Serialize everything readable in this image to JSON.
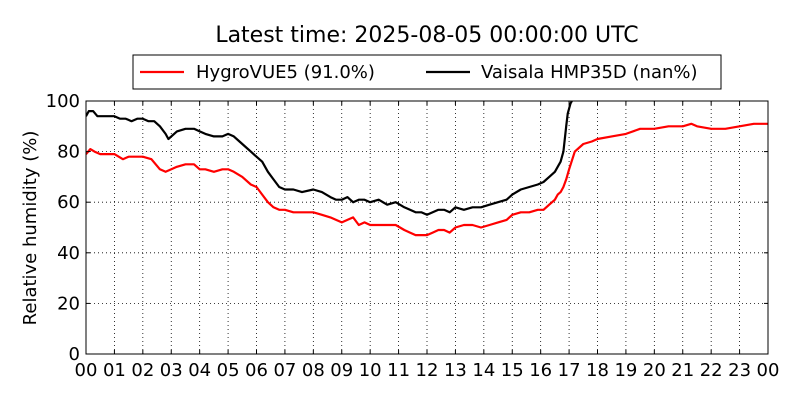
{
  "chart_data": {
    "type": "line",
    "title": "Latest time: 2025-08-05 00:00:00 UTC",
    "xlabel": "",
    "ylabel": "Relative humidity (%)",
    "xlim": [
      0,
      24
    ],
    "ylim": [
      0,
      100
    ],
    "x_tick_labels": [
      "00",
      "01",
      "02",
      "03",
      "04",
      "05",
      "06",
      "07",
      "08",
      "09",
      "10",
      "11",
      "12",
      "13",
      "14",
      "15",
      "16",
      "17",
      "18",
      "19",
      "20",
      "21",
      "22",
      "23",
      "00"
    ],
    "y_tick_labels": [
      "0",
      "20",
      "40",
      "60",
      "80",
      "100"
    ],
    "y_tick_values": [
      0,
      20,
      40,
      60,
      80,
      100
    ],
    "grid": true,
    "legend_position": "top-center",
    "series": [
      {
        "name": "HygroVUE5 (91.0%)",
        "color": "#ff0000",
        "x": [
          0.0,
          0.15,
          0.3,
          0.5,
          0.8,
          1.0,
          1.3,
          1.5,
          1.8,
          2.0,
          2.3,
          2.6,
          2.8,
          3.0,
          3.2,
          3.5,
          3.8,
          4.0,
          4.2,
          4.5,
          4.8,
          5.0,
          5.2,
          5.5,
          5.8,
          6.0,
          6.2,
          6.4,
          6.6,
          6.8,
          7.0,
          7.3,
          7.6,
          8.0,
          8.3,
          8.6,
          8.8,
          9.0,
          9.2,
          9.4,
          9.6,
          9.8,
          10.0,
          10.3,
          10.6,
          10.9,
          11.2,
          11.4,
          11.6,
          11.8,
          12.0,
          12.2,
          12.4,
          12.6,
          12.8,
          13.0,
          13.3,
          13.6,
          13.9,
          14.2,
          14.5,
          14.8,
          15.0,
          15.3,
          15.6,
          15.9,
          16.1,
          16.3,
          16.5,
          16.6,
          16.7,
          16.8,
          16.9,
          17.0,
          17.2,
          17.5,
          17.8,
          18.0,
          18.5,
          19.0,
          19.5,
          20.0,
          20.5,
          21.0,
          21.3,
          21.5,
          22.0,
          22.5,
          23.0,
          23.5,
          24.0
        ],
        "y": [
          79,
          81,
          80,
          79,
          79,
          79,
          77,
          78,
          78,
          78,
          77,
          73,
          72,
          73,
          74,
          75,
          75,
          73,
          73,
          72,
          73,
          73,
          72,
          70,
          67,
          66,
          63,
          60,
          58,
          57,
          57,
          56,
          56,
          56,
          55,
          54,
          53,
          52,
          53,
          54,
          51,
          52,
          51,
          51,
          51,
          51,
          49,
          48,
          47,
          47,
          47,
          48,
          49,
          49,
          48,
          50,
          51,
          51,
          50,
          51,
          52,
          53,
          55,
          56,
          56,
          57,
          57,
          59,
          61,
          63,
          64,
          66,
          69,
          73,
          80,
          83,
          84,
          85,
          86,
          87,
          89,
          89,
          90,
          90,
          91,
          90,
          89,
          89,
          90,
          91,
          91
        ]
      },
      {
        "name": "Vaisala HMP35D (nan%)",
        "color": "#000000",
        "x": [
          0.0,
          0.1,
          0.25,
          0.4,
          0.6,
          0.8,
          1.0,
          1.2,
          1.4,
          1.6,
          1.8,
          2.0,
          2.2,
          2.4,
          2.6,
          2.8,
          2.9,
          3.0,
          3.2,
          3.5,
          3.8,
          4.0,
          4.2,
          4.5,
          4.8,
          5.0,
          5.2,
          5.4,
          5.6,
          5.8,
          6.0,
          6.2,
          6.4,
          6.6,
          6.8,
          7.0,
          7.3,
          7.6,
          8.0,
          8.3,
          8.6,
          8.8,
          9.0,
          9.2,
          9.4,
          9.6,
          9.8,
          10.0,
          10.3,
          10.6,
          10.9,
          11.2,
          11.4,
          11.6,
          11.8,
          12.0,
          12.2,
          12.4,
          12.6,
          12.8,
          13.0,
          13.3,
          13.6,
          13.9,
          14.2,
          14.5,
          14.8,
          15.0,
          15.3,
          15.6,
          15.9,
          16.1,
          16.3,
          16.5,
          16.6,
          16.7,
          16.8,
          16.85,
          16.9,
          16.95,
          17.0,
          17.05,
          17.1
        ],
        "y": [
          94,
          96,
          96,
          94,
          94,
          94,
          94,
          93,
          93,
          92,
          93,
          93,
          92,
          92,
          90,
          87,
          85,
          86,
          88,
          89,
          89,
          88,
          87,
          86,
          86,
          87,
          86,
          84,
          82,
          80,
          78,
          76,
          72,
          69,
          66,
          65,
          65,
          64,
          65,
          64,
          62,
          61,
          61,
          62,
          60,
          61,
          61,
          60,
          61,
          59,
          60,
          58,
          57,
          56,
          56,
          55,
          56,
          57,
          57,
          56,
          58,
          57,
          58,
          58,
          59,
          60,
          61,
          63,
          65,
          66,
          67,
          68,
          70,
          72,
          74,
          76,
          80,
          85,
          90,
          95,
          97,
          99,
          100
        ]
      }
    ]
  }
}
